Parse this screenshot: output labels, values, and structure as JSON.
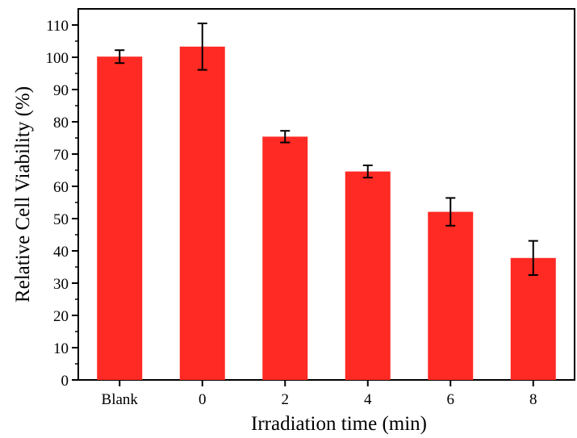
{
  "chart_data": {
    "type": "bar",
    "title": "",
    "xlabel": "Irradiation time (min)",
    "ylabel": "Relative Cell Viability (%)",
    "categories": [
      "Blank",
      "0",
      "2",
      "4",
      "6",
      "8"
    ],
    "values": [
      100.2,
      103.3,
      75.4,
      64.6,
      52.1,
      37.8
    ],
    "errors": [
      2.0,
      7.2,
      1.8,
      1.9,
      4.3,
      5.3
    ],
    "ylim": [
      0,
      115
    ],
    "yticks": [
      0,
      10,
      20,
      30,
      40,
      50,
      60,
      70,
      80,
      90,
      100,
      110
    ],
    "bar_color": "#ff2a24",
    "error_color": "#000000",
    "grid": false,
    "legend": "none"
  }
}
